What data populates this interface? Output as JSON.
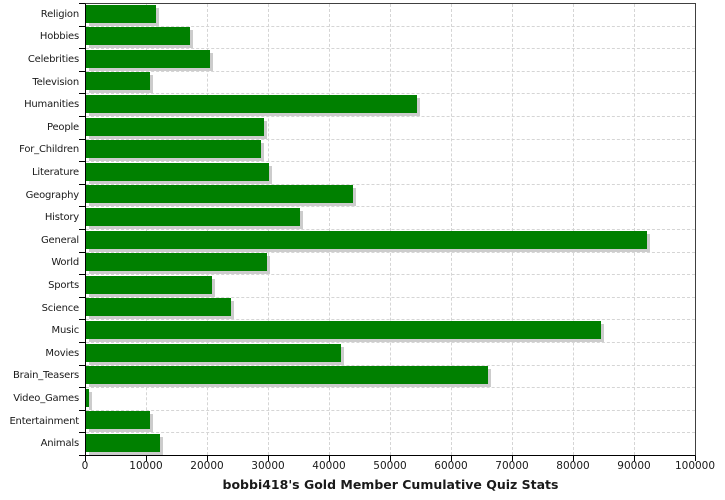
{
  "title": "bobbi418's Gold Member Cumulative Quiz Stats",
  "chart_data": {
    "type": "bar",
    "orientation": "horizontal",
    "title": "bobbi418's Gold Member Cumulative Quiz Stats",
    "xlabel": "",
    "ylabel": "",
    "xlim": [
      0,
      100000
    ],
    "x_ticks": [
      0,
      10000,
      20000,
      30000,
      40000,
      50000,
      60000,
      70000,
      80000,
      90000,
      100000
    ],
    "grid": true,
    "legend": "none",
    "categories": [
      "Religion",
      "Hobbies",
      "Celebrities",
      "Television",
      "Humanities",
      "People",
      "For_Children",
      "Literature",
      "Geography",
      "History",
      "General",
      "World",
      "Sports",
      "Science",
      "Music",
      "Movies",
      "Brain_Teasers",
      "Video_Games",
      "Entertainment",
      "Animals"
    ],
    "values": [
      11500,
      17100,
      20300,
      10500,
      54200,
      29200,
      28700,
      30000,
      43700,
      35000,
      92000,
      29700,
      20600,
      23800,
      84400,
      41800,
      65900,
      500,
      10500,
      12200
    ],
    "colors": {
      "bar": "#008000",
      "bar_shadow": "#cccccc",
      "grid": "#d5d5d5",
      "axis": "#000000",
      "frame": "#404040",
      "text": "#1a1a1a",
      "background": "#ffffff"
    }
  }
}
